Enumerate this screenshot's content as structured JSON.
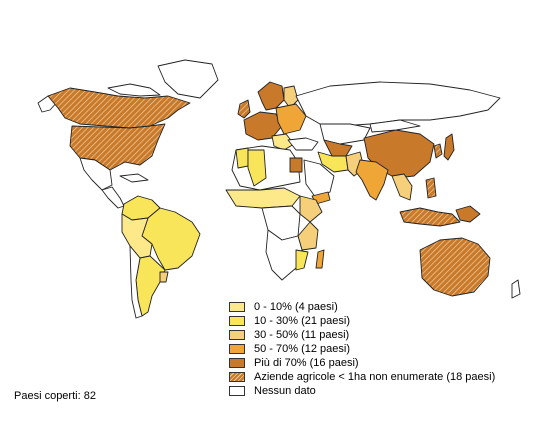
{
  "legend": {
    "items": [
      {
        "label": "0 - 10% (4 paesi)",
        "color": "#fde88a",
        "pattern": "solid"
      },
      {
        "label": "10 - 30% (21 paesi)",
        "color": "#f9e55a",
        "pattern": "solid"
      },
      {
        "label": "30 - 50% (11 paesi)",
        "color": "#f5cf7a",
        "pattern": "solid"
      },
      {
        "label": "50 - 70% (12 paesi)",
        "color": "#f0a636",
        "pattern": "solid"
      },
      {
        "label": "Più di 70% (16 paesi)",
        "color": "#c9792a",
        "pattern": "solid"
      },
      {
        "label": "Aziende agricole < 1ha non enumerate (18 paesi)",
        "color": "#c9792a",
        "pattern": "hatched"
      },
      {
        "label": "Nessun dato",
        "color": "#ffffff",
        "pattern": "solid"
      }
    ]
  },
  "footer": {
    "countries_covered": "Paesi coperti: 82"
  },
  "colors": {
    "outline": "#222222",
    "brown": "#c9792a",
    "orange": "#f0a636",
    "light_orange": "#f5cf7a",
    "yellow": "#f9e55a",
    "pale_yellow": "#fde88a",
    "no_data": "#ffffff"
  }
}
